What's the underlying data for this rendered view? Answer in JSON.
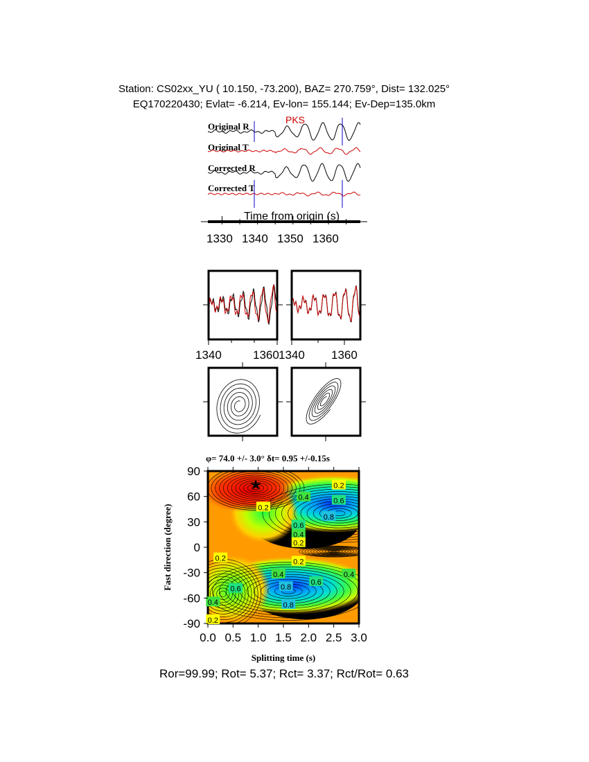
{
  "header": {
    "station_line": "Station: CS02xx_YU (  10.150,  -73.200), BAZ=  270.759°, Dist=  132.025°",
    "event_line": "EQ170220430; Evlat=  -6.214, Ev-lon= 155.144; Ev-Dep=135.0km"
  },
  "traces": {
    "phase_label": "PKS",
    "labels": [
      "Original R",
      "Original T",
      "Corrected R",
      "Corrected T"
    ],
    "xlabel": "Time from origin (s)",
    "ticks": [
      "1330",
      "1340",
      "1350",
      "1360"
    ],
    "xlim": [
      1326,
      1369
    ],
    "window": [
      1339.5,
      1364
    ],
    "colors": {
      "radial": "#000000",
      "transverse": "#cc0000",
      "window": "#0000cc"
    }
  },
  "waveform_panels": {
    "ticks": [
      "1340",
      "1360"
    ]
  },
  "contour": {
    "title": "φ= 74.0 +/- 3.0° δt= 0.95 +/-0.15s",
    "xlabel": "Splitting time (s)",
    "ylabel": "Fast direction (degree)",
    "xticks": [
      "0.0",
      "0.5",
      "1.0",
      "1.5",
      "2.0",
      "2.5",
      "3.0"
    ],
    "yticks": [
      "90",
      "60",
      "30",
      "0",
      "-30",
      "-60",
      "-90"
    ],
    "xlim": [
      0,
      3
    ],
    "ylim": [
      -90,
      90
    ],
    "best": {
      "dt": 0.95,
      "phi": 74
    },
    "labels": [
      {
        "t": "0.2",
        "x": 2.6,
        "y": 74
      },
      {
        "t": "0.4",
        "x": 1.9,
        "y": 60
      },
      {
        "t": "0.6",
        "x": 2.6,
        "y": 56
      },
      {
        "t": "0.2",
        "x": 1.1,
        "y": 48
      },
      {
        "t": "0.8",
        "x": 2.4,
        "y": 37
      },
      {
        "t": "0.6",
        "x": 1.8,
        "y": 27
      },
      {
        "t": "0.4",
        "x": 1.8,
        "y": 16
      },
      {
        "t": "0.2",
        "x": 1.8,
        "y": 6
      },
      {
        "t": "0.2",
        "x": 0.25,
        "y": -12
      },
      {
        "t": "0.2",
        "x": 1.8,
        "y": -16
      },
      {
        "t": "0.4",
        "x": 1.4,
        "y": -31
      },
      {
        "t": "0.6",
        "x": 2.15,
        "y": -40
      },
      {
        "t": "0.4",
        "x": 2.8,
        "y": -31
      },
      {
        "t": "0.6",
        "x": 0.55,
        "y": -48
      },
      {
        "t": "0.8",
        "x": 1.55,
        "y": -46
      },
      {
        "t": "0.4",
        "x": 0.1,
        "y": -64
      },
      {
        "t": "0.8",
        "x": 1.6,
        "y": -67
      },
      {
        "t": "0.2",
        "x": 0.1,
        "y": -85
      }
    ],
    "colormap": [
      "#ff0000",
      "#ff7f00",
      "#ffff00",
      "#00ff00",
      "#00ffff",
      "#0000ff"
    ]
  },
  "footer": "Ror=99.99; Rot= 5.37; Rct= 3.37; Rct/Rot= 0.63"
}
